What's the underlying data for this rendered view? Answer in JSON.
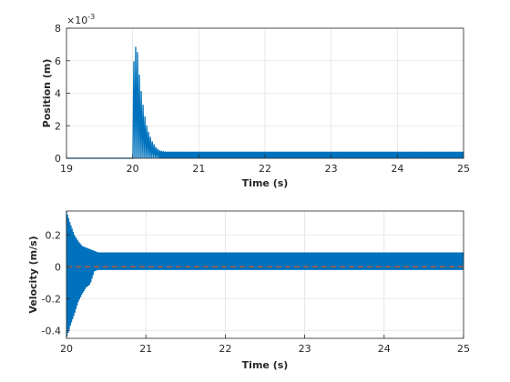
{
  "chart_data": [
    {
      "type": "line",
      "xlabel": "Time (s)",
      "ylabel": "Position (m)",
      "xlim": [
        19,
        25
      ],
      "ylim": [
        0,
        0.008
      ],
      "xticks": [
        "19",
        "20",
        "21",
        "22",
        "23",
        "24",
        "25"
      ],
      "yticks": [
        "0",
        "2",
        "4",
        "6",
        "8"
      ],
      "y_exponent_base": "×10",
      "y_exponent_power": "-3",
      "grid": true,
      "series": [
        {
          "color": "#0072BD",
          "x": [
            19.0,
            19.99,
            20.0,
            20.02,
            20.05,
            20.08,
            20.1,
            20.13,
            20.16,
            20.2,
            20.25,
            20.3,
            20.35,
            20.4,
            20.5,
            21.0,
            22.0,
            23.0,
            24.0,
            25.0
          ],
          "y": [
            0.0,
            0.0,
            0.0056,
            0.006,
            0.007,
            0.0064,
            0.0052,
            0.0041,
            0.0032,
            0.0022,
            0.0015,
            0.001,
            0.0007,
            0.0005,
            0.0004,
            0.0004,
            0.0004,
            0.0004,
            0.0004,
            0.0004
          ],
          "band_x": [
            19.99,
            20.0,
            20.02,
            20.05,
            20.08,
            20.1,
            20.13,
            20.16,
            20.2,
            20.25,
            20.3,
            20.35,
            20.4,
            20.5,
            21.0,
            22.0,
            23.0,
            24.0,
            25.0
          ],
          "band_low": [
            0.0,
            0.0,
            0.0,
            0.0,
            0.0,
            0.0,
            0.0,
            0.0,
            0.0,
            0.0,
            0.0,
            0.0,
            0.0,
            0.0,
            0.0,
            0.0,
            0.0,
            0.0,
            0.0
          ]
        }
      ]
    },
    {
      "type": "line",
      "xlabel": "Time (s)",
      "ylabel": "Velocity (m/s)",
      "xlim": [
        20,
        25
      ],
      "ylim": [
        -0.45,
        0.35
      ],
      "xticks": [
        "20",
        "21",
        "22",
        "23",
        "24",
        "25"
      ],
      "yticks": [
        "-0.4",
        "-0.2",
        "0",
        "0.2"
      ],
      "grid": true,
      "reference_line": {
        "y": 0,
        "color": "#D95319",
        "style": "dashed"
      },
      "series": [
        {
          "color": "#0072BD",
          "envelope_x": [
            20.0,
            20.05,
            20.1,
            20.15,
            20.2,
            20.25,
            20.3,
            20.35,
            20.4,
            20.5,
            21.0,
            22.0,
            23.0,
            24.0,
            25.0
          ],
          "envelope_high": [
            0.35,
            0.27,
            0.2,
            0.16,
            0.13,
            0.12,
            0.11,
            0.1,
            0.09,
            0.09,
            0.09,
            0.09,
            0.09,
            0.09,
            0.09
          ],
          "envelope_low": [
            -0.45,
            -0.37,
            -0.3,
            -0.22,
            -0.17,
            -0.13,
            -0.11,
            -0.03,
            -0.02,
            -0.02,
            -0.02,
            -0.02,
            -0.02,
            -0.02,
            -0.02
          ]
        }
      ]
    }
  ]
}
